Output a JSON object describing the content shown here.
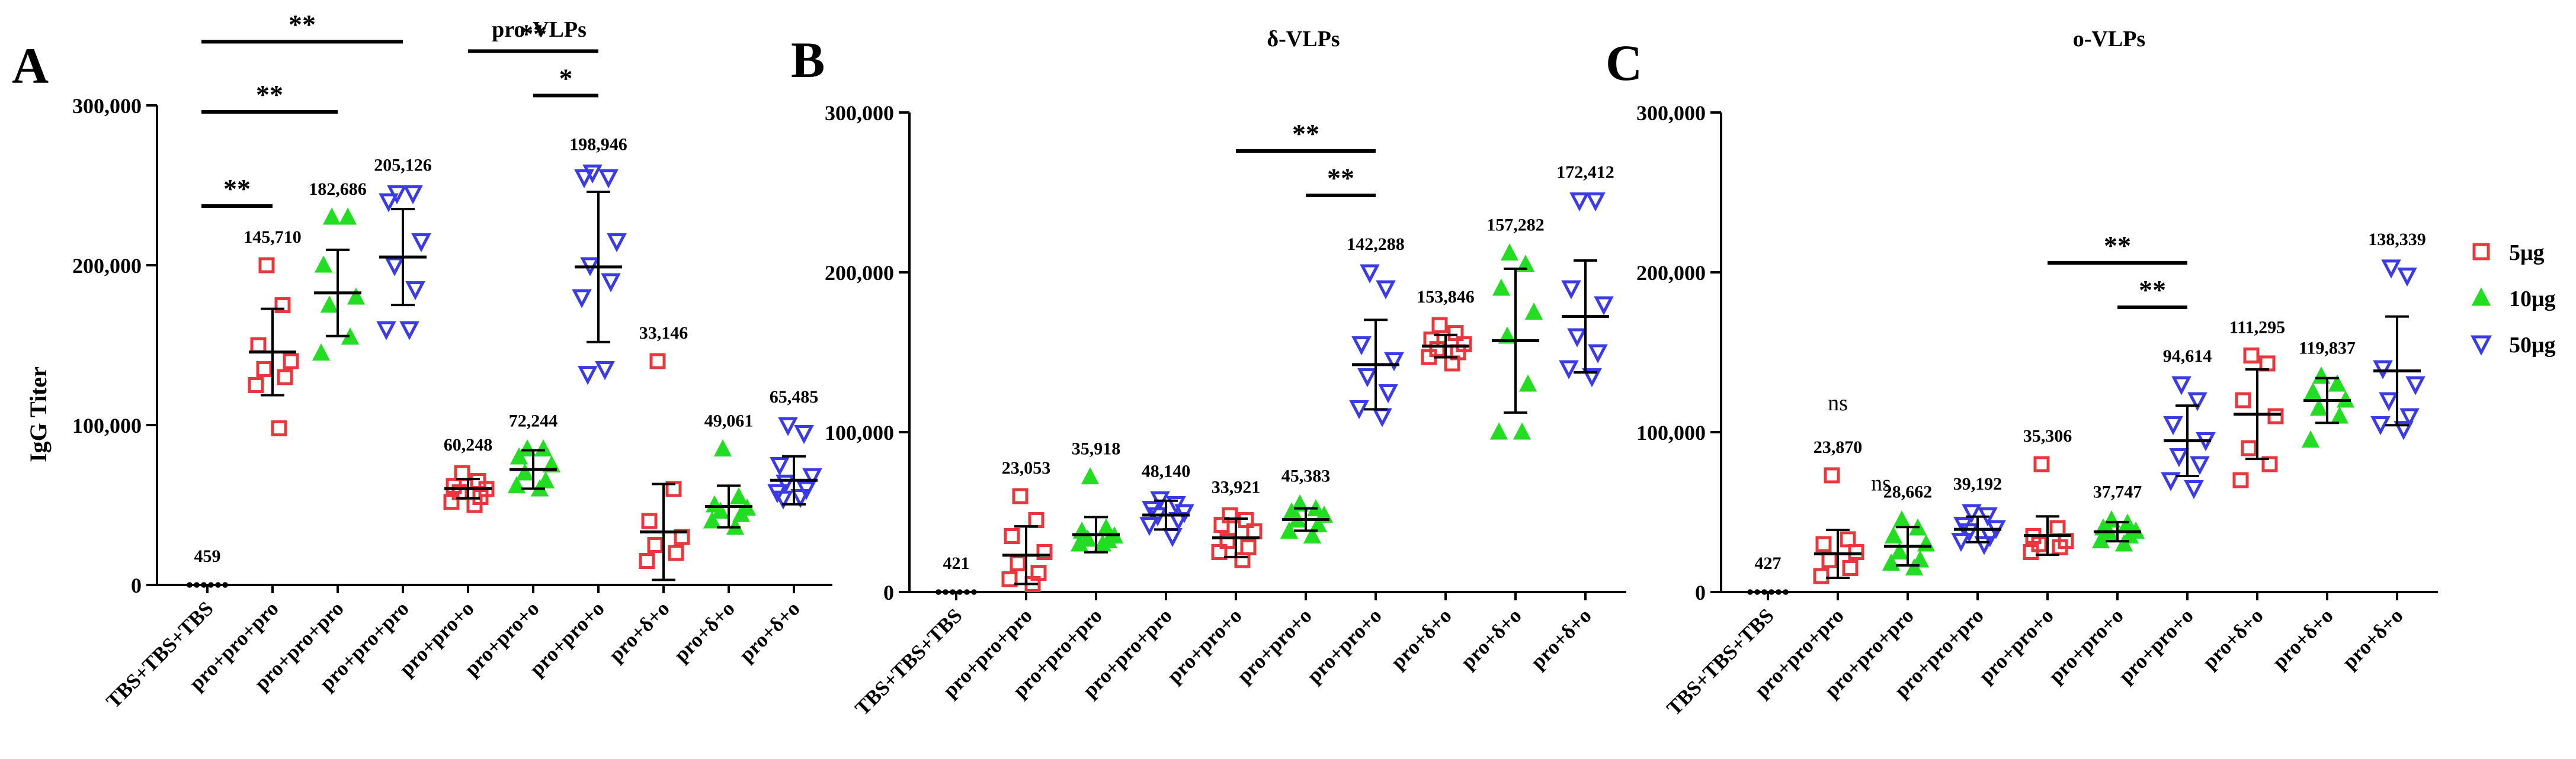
{
  "y_axis_title": "IgG Titer",
  "legend": {
    "placement": "right",
    "items": [
      {
        "label": "5μg",
        "color": "#e8383d",
        "marker": "square"
      },
      {
        "label": "10μg",
        "color": "#22dd22",
        "marker": "triangle-up"
      },
      {
        "label": "50μg",
        "color": "#3a3ae6",
        "marker": "triangle-down"
      }
    ]
  },
  "colors": {
    "control": "#000000",
    "5μg": "#e8383d",
    "10μg": "#22dd22",
    "50μg": "#3a3ae6"
  },
  "chart_data": [
    {
      "panel_letter": "A",
      "title": "pro-VLPs",
      "type": "scatter",
      "ylabel": "IgG Titer",
      "ylim": [
        0,
        300000
      ],
      "yticks": [
        "0",
        "100,000",
        "200,000",
        "300,000"
      ],
      "categories": [
        "TBS+TBS+TBS",
        "pro+pro+pro",
        "pro+pro+pro",
        "pro+pro+pro",
        "pro+pro+o",
        "pro+pro+o",
        "pro+pro+o",
        "pro+δ+o",
        "pro+δ+o",
        "pro+δ+o"
      ],
      "groups": [
        "control",
        "5μg",
        "10μg",
        "50μg",
        "5μg",
        "10μg",
        "50μg",
        "5μg",
        "10μg",
        "50μg"
      ],
      "means": [
        459,
        145710,
        182686,
        205126,
        60248,
        72244,
        198946,
        33146,
        49061,
        65485
      ],
      "mean_labels": [
        "459",
        "145,710",
        "182,686",
        "205,126",
        "60,248",
        "72,244",
        "198,946",
        "33,146",
        "49,061",
        "65,485"
      ],
      "sd": [
        0,
        27000,
        27000,
        30000,
        6000,
        12000,
        47000,
        30000,
        13000,
        15000
      ],
      "points": [
        [
          0,
          0,
          0,
          0,
          0,
          0
        ],
        [
          200000,
          175000,
          150000,
          140000,
          135000,
          130000,
          125000,
          98000
        ],
        [
          230000,
          230000,
          200000,
          180000,
          175000,
          155000,
          145000
        ],
        [
          245000,
          245000,
          240000,
          215000,
          200000,
          185000,
          160000,
          160000
        ],
        [
          70000,
          65000,
          62000,
          60000,
          58000,
          55000,
          52000,
          50000
        ],
        [
          85000,
          85000,
          80000,
          75000,
          70000,
          65000,
          62000,
          60000
        ],
        [
          258000,
          255000,
          255000,
          215000,
          200000,
          190000,
          180000,
          135000,
          132000
        ],
        [
          140000,
          60000,
          40000,
          30000,
          25000,
          20000,
          15000
        ],
        [
          85000,
          55000,
          50000,
          48000,
          46000,
          44000,
          40000,
          36000
        ],
        [
          100000,
          95000,
          75000,
          68000,
          64000,
          60000,
          58000,
          55000,
          54000
        ]
      ],
      "significance": [
        {
          "from": 0,
          "to": 3,
          "label": "**"
        },
        {
          "from": 0,
          "to": 2,
          "label": "**"
        },
        {
          "from": 0,
          "to": 1,
          "label": "**"
        },
        {
          "from": 4,
          "to": 6,
          "label": "**"
        },
        {
          "from": 5,
          "to": 6,
          "label": "*"
        }
      ],
      "ns_labels": []
    },
    {
      "panel_letter": "B",
      "title": "δ-VLPs",
      "type": "scatter",
      "ylabel": "",
      "ylim": [
        0,
        300000
      ],
      "yticks": [
        "0",
        "100,000",
        "200,000",
        "300,000"
      ],
      "categories": [
        "TBS+TBS+TBS",
        "pro+pro+pro",
        "pro+pro+pro",
        "pro+pro+pro",
        "pro+pro+o",
        "pro+pro+o",
        "pro+pro+o",
        "pro+δ+o",
        "pro+δ+o",
        "pro+δ+o"
      ],
      "groups": [
        "control",
        "5μg",
        "10μg",
        "50μg",
        "5μg",
        "10μg",
        "50μg",
        "5μg",
        "10μg",
        "50μg"
      ],
      "means": [
        421,
        23053,
        35918,
        48140,
        33921,
        45383,
        142288,
        153846,
        157282,
        172412
      ],
      "mean_labels": [
        "421",
        "23,053",
        "35,918",
        "48,140",
        "33,921",
        "45,383",
        "142,288",
        "153,846",
        "157,282",
        "172,412"
      ],
      "sd": [
        0,
        18000,
        11000,
        9000,
        12000,
        7000,
        28000,
        7000,
        45000,
        35000
      ],
      "points": [
        [
          0,
          0,
          0,
          0,
          0,
          0
        ],
        [
          60000,
          45000,
          35000,
          25000,
          18000,
          12000,
          8000,
          5000
        ],
        [
          72000,
          40000,
          38000,
          35000,
          33000,
          32000,
          30000,
          30000
        ],
        [
          58000,
          55000,
          52000,
          50000,
          48000,
          45000,
          42000,
          35000
        ],
        [
          48000,
          45000,
          42000,
          38000,
          32000,
          28000,
          25000,
          20000
        ],
        [
          55000,
          52000,
          50000,
          48000,
          45000,
          42000,
          38000,
          35000
        ],
        [
          200000,
          190000,
          155000,
          145000,
          135000,
          125000,
          115000,
          110000
        ],
        [
          167000,
          162000,
          158000,
          155000,
          152000,
          150000,
          147000,
          143000
        ],
        [
          212000,
          205000,
          190000,
          175000,
          160000,
          130000,
          100000,
          100000
        ],
        [
          245000,
          245000,
          190000,
          180000,
          160000,
          150000,
          140000,
          135000
        ]
      ],
      "significance": [
        {
          "from": 4,
          "to": 6,
          "label": "**"
        },
        {
          "from": 5,
          "to": 6,
          "label": "**"
        }
      ],
      "ns_labels": []
    },
    {
      "panel_letter": "C",
      "title": "o-VLPs",
      "type": "scatter",
      "ylabel": "",
      "ylim": [
        0,
        300000
      ],
      "yticks": [
        "0",
        "100,000",
        "200,000",
        "300,000"
      ],
      "categories": [
        "TBS+TBS+TBS",
        "pro+pro+pro",
        "pro+pro+pro",
        "pro+pro+pro",
        "pro+pro+o",
        "pro+pro+o",
        "pro+pro+o",
        "pro+δ+o",
        "pro+δ+o",
        "pro+δ+o"
      ],
      "groups": [
        "control",
        "5μg",
        "10μg",
        "50μg",
        "5μg",
        "10μg",
        "50μg",
        "5μg",
        "10μg",
        "50μg"
      ],
      "means": [
        427,
        23870,
        28662,
        39192,
        35306,
        37747,
        94614,
        111295,
        119837,
        138339
      ],
      "mean_labels": [
        "427",
        "23,870",
        "28,662",
        "39,192",
        "35,306",
        "37,747",
        "94,614",
        "111,295",
        "119,837",
        "138,339"
      ],
      "sd": [
        0,
        15000,
        12000,
        8000,
        12000,
        6000,
        22000,
        28000,
        14000,
        34000
      ],
      "points": [
        [
          0,
          0,
          0,
          0,
          0,
          0
        ],
        [
          73000,
          33000,
          30000,
          25000,
          20000,
          15000,
          10000
        ],
        [
          45000,
          40000,
          35000,
          30000,
          25000,
          20000,
          18000,
          15000
        ],
        [
          50000,
          48000,
          42000,
          40000,
          38000,
          35000,
          32000,
          30000
        ],
        [
          80000,
          40000,
          35000,
          32000,
          30000,
          28000,
          25000
        ],
        [
          45000,
          43000,
          40000,
          38000,
          37000,
          35000,
          32000,
          30000
        ],
        [
          130000,
          120000,
          105000,
          95000,
          85000,
          80000,
          70000,
          65000
        ],
        [
          148000,
          143000,
          120000,
          110000,
          90000,
          80000,
          70000
        ],
        [
          135000,
          130000,
          125000,
          120000,
          115000,
          110000,
          95000
        ],
        [
          203000,
          198000,
          140000,
          130000,
          120000,
          110000,
          105000,
          102000
        ]
      ],
      "significance": [
        {
          "from": 4,
          "to": 6,
          "label": "**"
        },
        {
          "from": 5,
          "to": 6,
          "label": "**"
        }
      ],
      "ns_labels": [
        {
          "index": 1,
          "label": "ns"
        },
        {
          "index": 2,
          "label": "ns"
        }
      ]
    }
  ]
}
